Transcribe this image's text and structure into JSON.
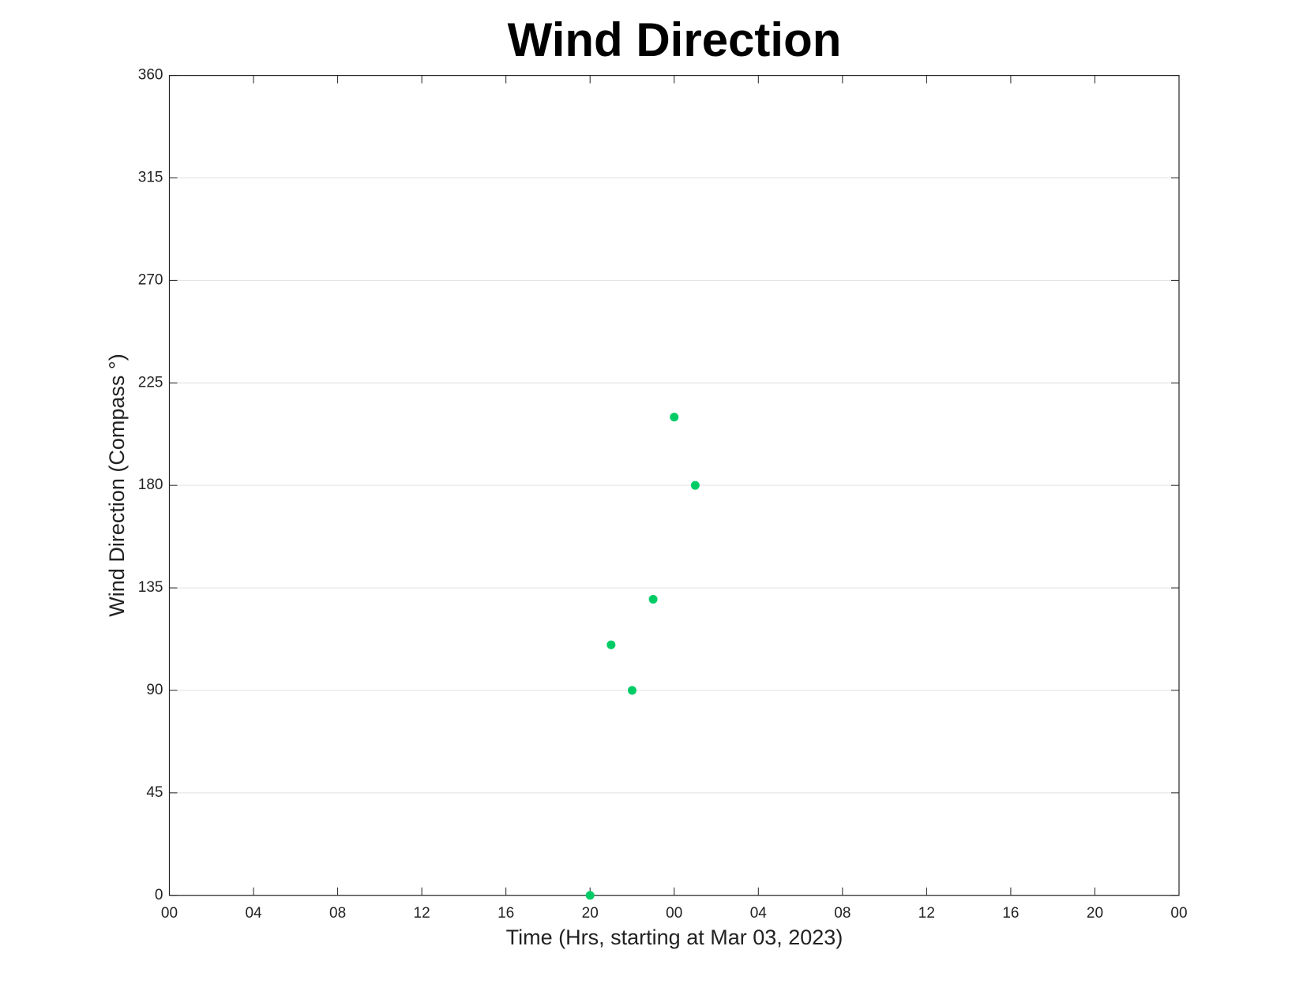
{
  "chart_data": {
    "type": "scatter",
    "title": "Wind Direction",
    "x_label": "Time (Hrs, starting at Mar 03, 2023)",
    "y_label": "Wind Direction (Compass °)",
    "x": [
      20,
      21,
      22,
      23,
      24,
      25
    ],
    "values": [
      0,
      110,
      90,
      130,
      210,
      180
    ],
    "color": "#00cc66",
    "xlim": [
      0,
      48
    ],
    "xticks": [
      {
        "value": 0,
        "label": "00"
      },
      {
        "value": 4,
        "label": "04"
      },
      {
        "value": 8,
        "label": "08"
      },
      {
        "value": 12,
        "label": "12"
      },
      {
        "value": 16,
        "label": "16"
      },
      {
        "value": 20,
        "label": "20"
      },
      {
        "value": 24,
        "label": "00"
      },
      {
        "value": 28,
        "label": "04"
      },
      {
        "value": 32,
        "label": "08"
      },
      {
        "value": 36,
        "label": "12"
      },
      {
        "value": 40,
        "label": "16"
      },
      {
        "value": 44,
        "label": "20"
      },
      {
        "value": 48,
        "label": "00"
      }
    ],
    "ylim": [
      0,
      360
    ],
    "yticks": [
      0,
      45,
      90,
      135,
      180,
      225,
      270,
      315,
      360
    ],
    "grid": "y"
  }
}
